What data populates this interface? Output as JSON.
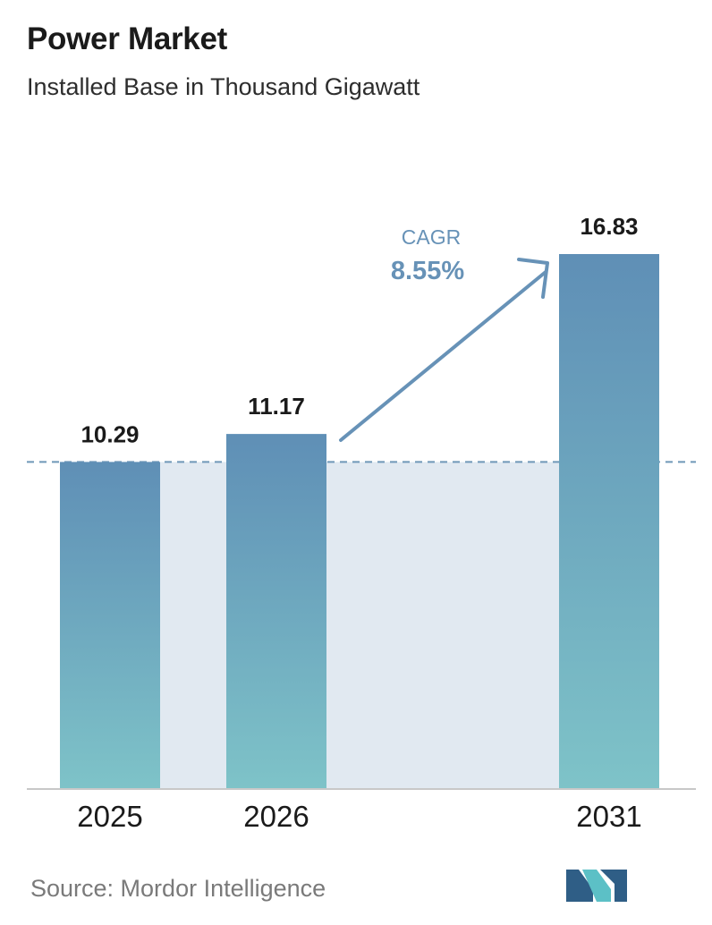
{
  "header": {
    "title": "Power Market",
    "subtitle": "Installed Base in Thousand Gigawatt"
  },
  "chart_data": {
    "type": "bar",
    "categories": [
      "2025",
      "2026",
      "2031"
    ],
    "values": [
      10.29,
      11.17,
      16.83
    ],
    "value_labels": [
      "10.29",
      "11.17",
      "16.83"
    ],
    "ylim": [
      0,
      16.83
    ],
    "grid": false,
    "annotation": {
      "label": "CAGR",
      "value": "8.55%"
    }
  },
  "footer": {
    "source": "Source:  Mordor Intelligence"
  },
  "colors": {
    "bar_top": "#5f8fb6",
    "bar_bottom": "#7ec3c8",
    "band": "#e1e9f1",
    "arrow": "#6792b7",
    "dashed_line": "#6f98b8",
    "axis": "#c8c8c8",
    "logo_dark": "#2f5e86",
    "logo_light": "#5cc0c6"
  },
  "icons": {
    "logo": "mordor-intelligence-logo-icon"
  }
}
